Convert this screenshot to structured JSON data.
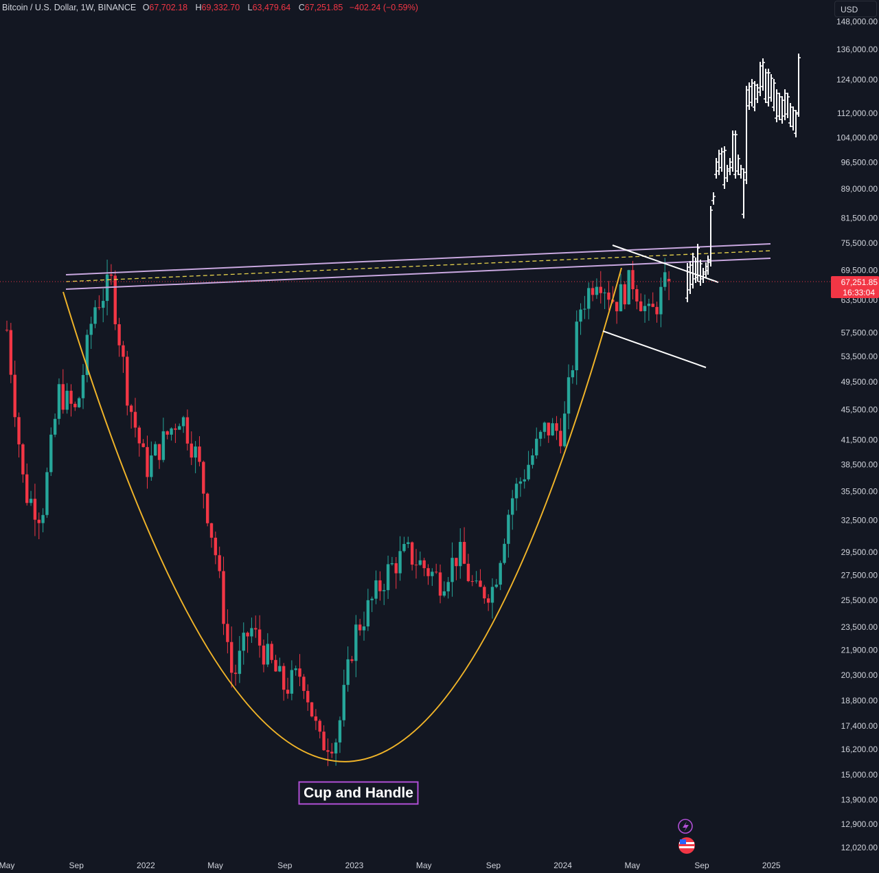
{
  "header": {
    "symbol": "Bitcoin / U.S. Dollar, 1W, BINANCE",
    "open_label": "O",
    "open": "67,702.18",
    "high_label": "H",
    "high": "69,332.70",
    "low_label": "L",
    "low": "63,479.64",
    "close_label": "C",
    "close": "67,251.85",
    "change": "−402.24 (−0.59%)"
  },
  "currency_button": "USD",
  "price_tag": {
    "price": "67,251.85",
    "countdown": "16:33:04"
  },
  "annotation": {
    "label": "Cup and Handle"
  },
  "colors": {
    "background": "#131722",
    "up": "#26a69a",
    "down": "#f23645",
    "cup_curve": "#f0b429",
    "channel": "#c9a8e0",
    "midline": "#e8d44d",
    "projection": "#ffffff",
    "label_border": "#b14fd6"
  },
  "chart_data": {
    "type": "candlestick",
    "title": "Bitcoin / U.S. Dollar, 1W, BINANCE",
    "y_scale": "log",
    "ylim": [
      11500,
      149000
    ],
    "x_ticks": [
      "May",
      "Sep",
      "2022",
      "May",
      "Sep",
      "2023",
      "May",
      "Sep",
      "2024",
      "May",
      "Sep",
      "2025"
    ],
    "y_ticks": [
      148000,
      136000,
      124000,
      112000,
      104000,
      96500,
      89000,
      81500,
      75500,
      69500,
      63500,
      57500,
      53500,
      49500,
      45500,
      41500,
      38500,
      35500,
      32500,
      29500,
      27500,
      25500,
      23500,
      21900,
      20300,
      18800,
      17400,
      16200,
      15000,
      13900,
      12900,
      12020
    ],
    "y_tick_labels": [
      "148,000.00",
      "136,000.00",
      "124,000.00",
      "112,000.00",
      "104,000.00",
      "96,500.00",
      "89,000.00",
      "81,500.00",
      "75,500.00",
      "69,500.00",
      "63,500.00",
      "57,500.00",
      "53,500.00",
      "49,500.00",
      "45,500.00",
      "41,500.00",
      "38,500.00",
      "35,500.00",
      "32,500.00",
      "29,500.00",
      "27,500.00",
      "25,500.00",
      "23,500.00",
      "21,900.00",
      "20,300.00",
      "18,800.00",
      "17,400.00",
      "16,200.00",
      "15,000.00",
      "13,900.00",
      "12,900.00",
      "12,020.00"
    ],
    "weekly_close_path": [
      [
        "2021-05",
        58000
      ],
      [
        "2021-06",
        35500
      ],
      [
        "2021-07",
        33000
      ],
      [
        "2021-08",
        48000
      ],
      [
        "2021-09",
        45000
      ],
      [
        "2021-10",
        62000
      ],
      [
        "2021-11",
        67000
      ],
      [
        "2021-12",
        47000
      ],
      [
        "2022-01",
        38000
      ],
      [
        "2022-03",
        45000
      ],
      [
        "2022-04",
        39000
      ],
      [
        "2022-05",
        29500
      ],
      [
        "2022-06",
        20000
      ],
      [
        "2022-07",
        23500
      ],
      [
        "2022-09",
        19500
      ],
      [
        "2022-10",
        20500
      ],
      [
        "2022-11",
        16500
      ],
      [
        "2022-12",
        16800
      ],
      [
        "2023-01",
        23000
      ],
      [
        "2023-03",
        28000
      ],
      [
        "2023-04",
        29500
      ],
      [
        "2023-06",
        27000
      ],
      [
        "2023-07",
        29500
      ],
      [
        "2023-08",
        26000
      ],
      [
        "2023-09",
        26500
      ],
      [
        "2023-10",
        34500
      ],
      [
        "2023-12",
        43000
      ],
      [
        "2024-01",
        42500
      ],
      [
        "2024-02",
        62000
      ],
      [
        "2024-03",
        69000
      ],
      [
        "2024-04",
        63000
      ],
      [
        "2024-05",
        67500
      ],
      [
        "2024-06",
        60000
      ],
      [
        "2024-07",
        67251.85
      ]
    ],
    "last_candle": {
      "open": 67702.18,
      "high": 69332.7,
      "low": 63479.64,
      "close": 67251.85,
      "change": -402.24,
      "change_pct": -0.59
    },
    "annotations": [
      "Cup and Handle"
    ]
  }
}
